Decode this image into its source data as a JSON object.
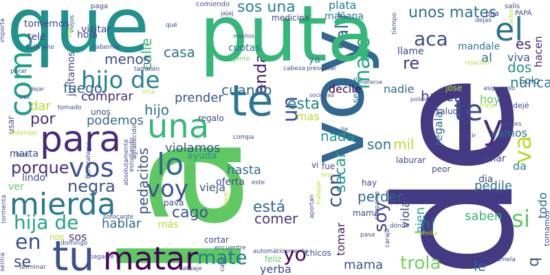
{
  "words": [
    {
      "text": "la",
      "color": "#5ec962"
    },
    {
      "text": "de",
      "color": "#443983"
    },
    {
      "text": "puta",
      "color": "#35b779"
    },
    {
      "text": "que",
      "color": "#21918c"
    },
    {
      "text": "te",
      "color": "#2a788e"
    },
    {
      "text": "voy",
      "color": "#31688e"
    },
    {
      "text": "tu",
      "color": "#3b528b"
    },
    {
      "text": "matar",
      "color": "#440154"
    },
    {
      "text": "mierda",
      "color": "#2a788e"
    },
    {
      "text": "para",
      "color": "#482878"
    },
    {
      "text": "una",
      "color": "#35b779"
    },
    {
      "text": "te",
      "color": "#3e4989"
    },
    {
      "text": "y",
      "color": "#472d7b"
    },
    {
      "text": "vos",
      "color": "#3b528b"
    },
    {
      "text": "lo",
      "color": "#31688e"
    },
    {
      "text": "el",
      "color": "#2c728e"
    },
    {
      "text": "voy",
      "color": "#3b528b"
    },
    {
      "text": "mate",
      "color": "#2a788e"
    },
    {
      "text": "hijo de",
      "color": "#26828e"
    },
    {
      "text": "hija de",
      "color": "#20a486"
    },
    {
      "text": "en",
      "color": "#3b528b"
    },
    {
      "text": "como",
      "color": "#1f9e89"
    },
    {
      "text": "va",
      "color": "#b5de2b"
    },
    {
      "text": "si",
      "color": "#5ec962"
    },
    {
      "text": "aca",
      "color": "#3e4989"
    },
    {
      "text": "negra",
      "color": "#3b528b"
    },
    {
      "text": "porque",
      "color": "#472d7b"
    },
    {
      "text": "sos una",
      "color": "#26828e"
    },
    {
      "text": "unos mates",
      "color": "#2c728e"
    },
    {
      "text": "mato",
      "color": "#20a486"
    },
    {
      "text": "es",
      "color": "#482878"
    },
    {
      "text": "re",
      "color": "#46337e"
    },
    {
      "text": "yo",
      "color": "#440154"
    },
    {
      "text": "con",
      "color": "#3b528b"
    },
    {
      "text": "trola",
      "color": "#73d056"
    },
    {
      "text": "hacer",
      "color": "#46337e"
    },
    {
      "text": "un",
      "color": "#3b528b"
    },
    {
      "text": "salir",
      "color": "#31688e"
    },
    {
      "text": "esta",
      "color": "#26828e"
    },
    {
      "text": "por",
      "color": "#472d7b"
    },
    {
      "text": "hijo",
      "color": "#2c728e"
    },
    {
      "text": "nada",
      "color": "#1f9e89"
    },
    {
      "text": "mil",
      "color": "#b5de2b"
    },
    {
      "text": "son",
      "color": "#2c728e"
    },
    {
      "text": "está",
      "color": "#31688e"
    },
    {
      "text": "cago",
      "color": "#3b528b"
    },
    {
      "text": "comer",
      "color": "#443983"
    },
    {
      "text": "anda",
      "color": "#48186a"
    },
    {
      "text": "violamos",
      "color": "#3b528b"
    },
    {
      "text": "cuando",
      "color": "#31688e"
    },
    {
      "text": "casa",
      "color": "#2c728e"
    },
    {
      "text": "dos",
      "color": "#21918c"
    },
    {
      "text": "nunca",
      "color": "#2a788e"
    },
    {
      "text": "plata",
      "color": "#2a788e"
    },
    {
      "text": "soy",
      "color": "#3e4989"
    },
    {
      "text": "sacar",
      "color": "#1f9e89"
    },
    {
      "text": "perder",
      "color": "#31688e"
    },
    {
      "text": "hablar",
      "color": "#31688e"
    },
    {
      "text": "mama",
      "color": "#3b528b"
    },
    {
      "text": "le",
      "color": "#31688e"
    },
    {
      "text": "se",
      "color": "#3e4989"
    },
    {
      "text": "ni",
      "color": "#2c728e"
    },
    {
      "text": "fuego",
      "color": "#31688e"
    },
    {
      "text": "q",
      "color": "#3b528b"
    },
    {
      "text": "sos",
      "color": "#472d7b"
    },
    {
      "text": "dar",
      "color": "#b5de2b"
    },
    {
      "text": "calle",
      "color": "#35b779"
    },
    {
      "text": "menos",
      "color": "#3e4989"
    },
    {
      "text": "prender",
      "color": "#3b528b"
    },
    {
      "text": "comprar",
      "color": "#482878"
    },
    {
      "text": "podemos",
      "color": "#31688e"
    },
    {
      "text": "hasta",
      "color": "#31688e"
    },
    {
      "text": "pedile",
      "color": "#2c728e"
    },
    {
      "text": "saben",
      "color": "#35b779"
    },
    {
      "text": "todo",
      "color": "#31688e"
    },
    {
      "text": "decile",
      "color": "#440154"
    },
    {
      "text": "nadie",
      "color": "#31688e"
    },
    {
      "text": "al",
      "color": "#2c728e"
    },
    {
      "text": "viva",
      "color": "#3b528b"
    },
    {
      "text": "Solo",
      "color": "#31688e"
    },
    {
      "text": "hoy",
      "color": "#5ec962"
    },
    {
      "text": "vamos",
      "color": "#2c728e"
    },
    {
      "text": "da",
      "color": "#26828e"
    },
    {
      "text": "pedacitos",
      "color": "#3b528b"
    },
    {
      "text": "vieja",
      "color": "#3b528b"
    },
    {
      "text": "concha",
      "color": "#3e4989"
    },
    {
      "text": "bien",
      "color": "#20a486"
    },
    {
      "text": "tomar",
      "color": "#48186a"
    },
    {
      "text": "violar",
      "color": "#3e4989"
    },
    {
      "text": "regalar",
      "color": "#31688e"
    },
    {
      "text": "mandale",
      "color": "#2c728e"
    },
    {
      "text": "llame",
      "color": "#3e4989"
    },
    {
      "text": "ya",
      "color": "#2c728e"
    },
    {
      "text": "mas",
      "color": "#b5de2b"
    },
    {
      "text": "más",
      "color": "#b5de2b"
    },
    {
      "text": "cuotas",
      "color": "#2c728e"
    },
    {
      "text": "marta",
      "color": "#3e4989"
    },
    {
      "text": "ver",
      "color": "#5ec962"
    },
    {
      "text": "lindo",
      "color": "#3e4989"
    },
    {
      "text": "visitar",
      "color": "#3e4989"
    },
    {
      "text": "hola",
      "color": "#3e4989"
    },
    {
      "text": "tele",
      "color": "#3e4989"
    },
    {
      "text": "juntamos",
      "color": "#3e4989"
    },
    {
      "text": "usar",
      "color": "#3e4989"
    },
    {
      "text": "tomemos",
      "color": "#3e4989"
    },
    {
      "text": "medicina",
      "color": "#3e4989"
    },
    {
      "text": "servis",
      "color": "#2c728e"
    },
    {
      "text": "hacen",
      "color": "#482878"
    },
    {
      "text": "mañana",
      "color": "#2c728e"
    },
    {
      "text": "pija",
      "color": "#3e4989"
    },
    {
      "text": "ayuda",
      "color": "#21918c"
    },
    {
      "text": "oferta",
      "color": "#3e4989"
    },
    {
      "text": "dolar",
      "color": "#3e4989"
    },
    {
      "text": "dia",
      "color": "#3e4989"
    },
    {
      "text": "fue",
      "color": "#3e4989"
    },
    {
      "text": "vi",
      "color": "#3e4989"
    },
    {
      "text": "nos",
      "color": "#b5de2b"
    },
    {
      "text": "cortar",
      "color": "#3e4989"
    },
    {
      "text": "feliz",
      "color": "#5ec962"
    },
    {
      "text": "yerba",
      "color": "#3e4989"
    },
    {
      "text": "chicos",
      "color": "#3e4989"
    },
    {
      "text": "tomamos",
      "color": "#3e4989"
    },
    {
      "text": "jose",
      "color": "#b5de2b"
    },
    {
      "text": "saludo",
      "color": "#3e4989"
    },
    {
      "text": "carlos",
      "color": "#b5de2b"
    },
    {
      "text": "unos",
      "color": "#3e4989"
    },
    {
      "text": "regalo",
      "color": "#3e4989"
    },
    {
      "text": "pava",
      "color": "#3e4989"
    },
    {
      "text": "mamá",
      "color": "#3e4989"
    },
    {
      "text": "hay",
      "color": "#3e4989"
    },
    {
      "text": "viejos",
      "color": "#3e4989"
    },
    {
      "text": "laburar",
      "color": "#3e4989"
    },
    {
      "text": "peor",
      "color": "#3e4989"
    },
    {
      "text": "dejé",
      "color": "#3e4989"
    },
    {
      "text": "paga",
      "color": "#3e4989"
    },
    {
      "text": "comiendo",
      "color": "#3e4989"
    },
    {
      "text": "salis",
      "color": "#3e4989"
    },
    {
      "text": "PAPÁ",
      "color": "#3e4989"
    },
    {
      "text": "dejas",
      "color": "#3e4989"
    },
    {
      "text": "jajaj",
      "color": "#3e4989"
    },
    {
      "text": "qué",
      "color": "#3e4989"
    },
    {
      "text": "machos",
      "color": "#3e4989"
    },
    {
      "text": "gente",
      "color": "#5ec962"
    },
    {
      "text": "cabeza",
      "color": "#3e4989"
    },
    {
      "text": "presentar",
      "color": "#3e4989"
    },
    {
      "text": "relación",
      "color": "#b5de2b"
    },
    {
      "text": "boliviano",
      "color": "#3e4989"
    },
    {
      "text": "haberme",
      "color": "#3e4989"
    },
    {
      "text": "parar",
      "color": "#3e4989"
    },
    {
      "text": "también",
      "color": "#3e4989"
    },
    {
      "text": "otra",
      "color": "#b5de2b"
    },
    {
      "text": "tomado",
      "color": "#3e4989"
    },
    {
      "text": "tres",
      "color": "#3e4989"
    },
    {
      "text": "dejar",
      "color": "#3e4989"
    },
    {
      "text": "meterse",
      "color": "#3e4989"
    },
    {
      "text": "sociedad",
      "color": "#3e4989"
    },
    {
      "text": "policia",
      "color": "#3e4989"
    },
    {
      "text": "asqueroso",
      "color": "#3e4989"
    },
    {
      "text": "trata",
      "color": "#b5de2b"
    },
    {
      "text": "ha",
      "color": "#3e4989"
    },
    {
      "text": "haces",
      "color": "#3e4989"
    },
    {
      "text": "decir",
      "color": "#3e4989"
    },
    {
      "text": "compa",
      "color": "#3e4989"
    },
    {
      "text": "tirar",
      "color": "#b5de2b"
    },
    {
      "text": "tiros",
      "color": "#3e4989"
    },
    {
      "text": "calor",
      "color": "#3e4989"
    },
    {
      "text": "sofocante",
      "color": "#3e4989"
    },
    {
      "text": "domingo",
      "color": "#3e4989"
    },
    {
      "text": "pagaste",
      "color": "#3e4989"
    },
    {
      "text": "terminar",
      "color": "#3e4989"
    },
    {
      "text": "automáticamente",
      "color": "#3e4989"
    },
    {
      "text": "encuentre",
      "color": "#3e4989"
    },
    {
      "text": "tatuaje",
      "color": "#3e4989"
    },
    {
      "text": "carajo",
      "color": "#3e4989"
    },
    {
      "text": "pasa",
      "color": "#3e4989"
    },
    {
      "text": "familia",
      "color": "#b5de2b"
    },
    {
      "text": "Igual",
      "color": "#b5de2b"
    },
    {
      "text": "pone",
      "color": "#3e4989"
    },
    {
      "text": "tiempo",
      "color": "#3e4989"
    },
    {
      "text": "romper",
      "color": "#3e4989"
    },
    {
      "text": "chupamela",
      "color": "#3e4989"
    },
    {
      "text": "chupame",
      "color": "#3e4989"
    },
    {
      "text": "dónde",
      "color": "#3e4989"
    },
    {
      "text": "palo",
      "color": "#b5de2b"
    },
    {
      "text": "trabajar",
      "color": "#b5de2b"
    },
    {
      "text": "aportan",
      "color": "#3e4989"
    },
    {
      "text": "absolutamente",
      "color": "#3e4989"
    },
    {
      "text": "estudiando",
      "color": "#3e4989"
    },
    {
      "text": "agradecido",
      "color": "#3e4989"
    },
    {
      "text": "Berazategui",
      "color": "#3e4989"
    },
    {
      "text": "tormenta",
      "color": "#3e4989"
    },
    {
      "text": "sentía",
      "color": "#3e4989"
    },
    {
      "text": "importa",
      "color": "#3e4989"
    },
    {
      "text": "entender",
      "color": "#b5de2b"
    },
    {
      "text": "este",
      "color": "#3e4989"
    },
    {
      "text": "Agradece",
      "color": "#b5de2b"
    },
    {
      "text": "agarré",
      "color": "#b5de2b"
    },
    {
      "text": "empresa",
      "color": "#3e4989"
    },
    {
      "text": "cv",
      "color": "#b5de2b"
    },
    {
      "text": "t",
      "color": "#b5de2b"
    }
  ]
}
